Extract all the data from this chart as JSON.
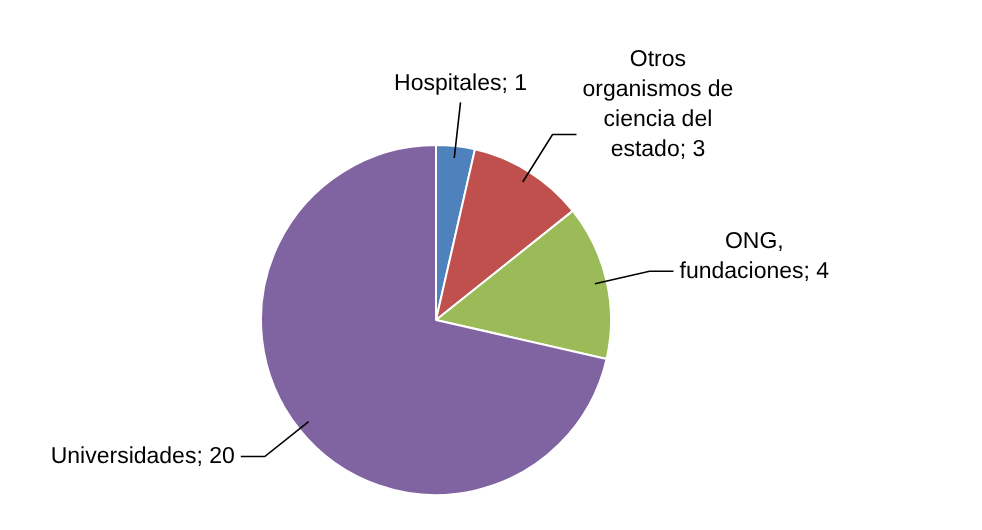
{
  "chart_data": {
    "type": "pie",
    "categories": [
      "Hospitales",
      "Otros organismos de ciencia del estado",
      "ONG, fundaciones",
      "Universidades"
    ],
    "values": [
      1,
      3,
      4,
      20
    ],
    "value_labels": [
      "; 1",
      "; 3",
      "; 4",
      "; 20"
    ],
    "colors": [
      "#4f81bd",
      "#c0504d",
      "#9bbb59",
      "#8064a2"
    ],
    "legend": false
  }
}
